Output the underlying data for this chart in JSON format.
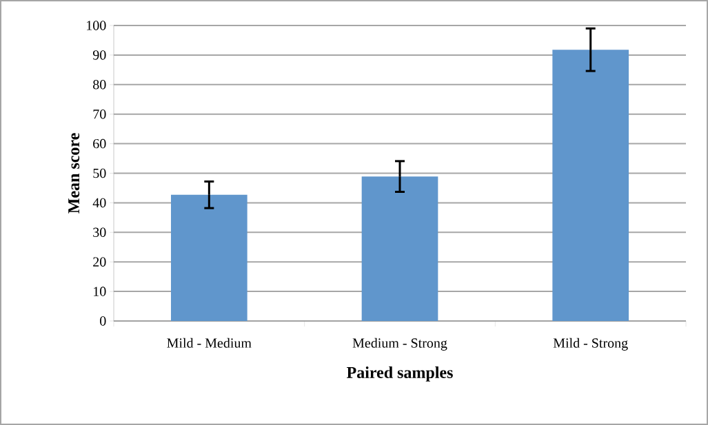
{
  "chart_data": {
    "type": "bar",
    "xlabel": "Paired samples",
    "ylabel": "Mean score",
    "categories": [
      "Mild - Medium",
      "Medium - Strong",
      "Mild - Strong"
    ],
    "values": [
      42.7,
      48.9,
      91.8
    ],
    "errors": [
      4.5,
      5.2,
      7.2
    ],
    "color": "#6096cc",
    "ylim": [
      0,
      100
    ],
    "yticks": [
      0,
      10,
      20,
      30,
      40,
      50,
      60,
      70,
      80,
      90,
      100
    ],
    "grid": "y"
  }
}
